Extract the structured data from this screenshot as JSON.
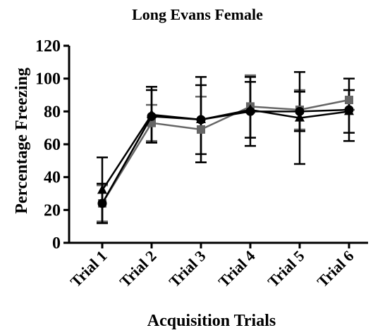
{
  "chart_data": {
    "type": "line",
    "title": "Long Evans Female",
    "xlabel": "Acquisition Trials",
    "ylabel": "Percentage Freezing",
    "categories": [
      "Trial 1",
      "Trial 2",
      "Trial 3",
      "Trial 4",
      "Trial 5",
      "Trial 6"
    ],
    "series": [
      {
        "color": "#666666",
        "marker": "square",
        "values": [
          24,
          73,
          69,
          83,
          81,
          87
        ],
        "errors": [
          11,
          11,
          20,
          19,
          12,
          6
        ]
      },
      {
        "color": "#000000",
        "marker": "triangle",
        "values": [
          32,
          78,
          75,
          81,
          76,
          80
        ],
        "errors": [
          20,
          17,
          21,
          17,
          28,
          13
        ]
      },
      {
        "color": "#000000",
        "marker": "circle",
        "values": [
          24,
          77,
          75,
          80,
          80,
          81
        ],
        "errors": [
          12,
          16,
          26,
          21,
          12,
          19
        ]
      }
    ],
    "ylim": [
      0,
      120
    ],
    "yticks": [
      0,
      20,
      40,
      60,
      80,
      100,
      120
    ],
    "grid": false
  }
}
